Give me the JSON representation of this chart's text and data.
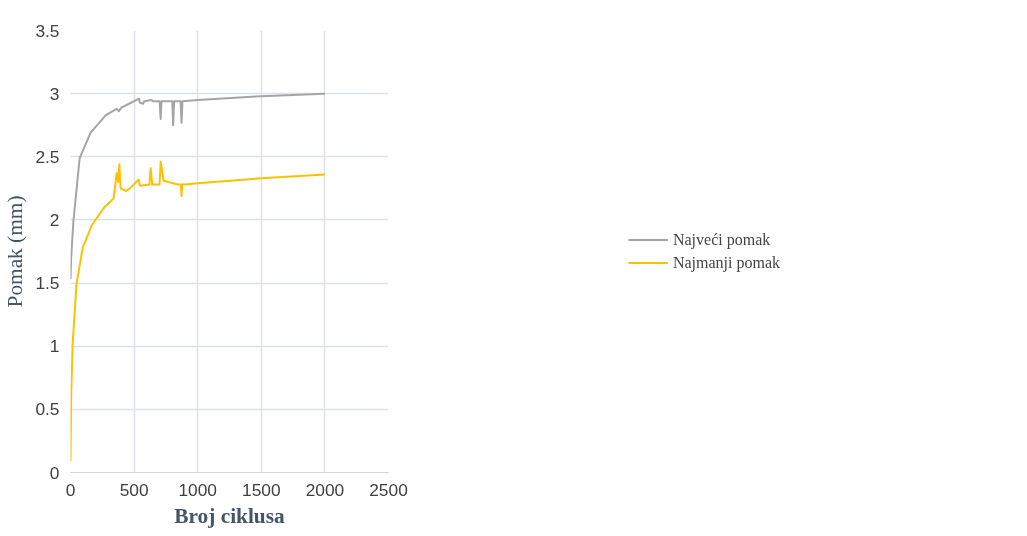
{
  "chart_data": {
    "type": "line",
    "xlabel": "Broj ciklusa",
    "ylabel": "Pomak (mm)",
    "xlim": [
      0,
      2500
    ],
    "xticks": [
      0,
      500,
      1000,
      1500,
      2000,
      2500
    ],
    "ylim": [
      0,
      3.5
    ],
    "yticks": [
      0,
      0.5,
      1,
      1.5,
      2,
      2.5,
      3,
      3.5
    ],
    "grid": true,
    "legend": "right",
    "marker": "none",
    "line_style": "solid",
    "series": [
      {
        "name": "Najveći pomak",
        "color": "#a5a5a5",
        "x": [
          0,
          5,
          23,
          72,
          157,
          278,
          363,
          381,
          400,
          460,
          539,
          545,
          570,
          580,
          637,
          650,
          700,
          709,
          715,
          800,
          807,
          815,
          865,
          873,
          880,
          1000,
          1500,
          2000
        ],
        "values": [
          1.53,
          1.7,
          1.99,
          2.49,
          2.69,
          2.83,
          2.88,
          2.86,
          2.89,
          2.92,
          2.96,
          2.93,
          2.92,
          2.94,
          2.95,
          2.94,
          2.94,
          2.8,
          2.94,
          2.94,
          2.75,
          2.94,
          2.94,
          2.77,
          2.94,
          2.95,
          2.98,
          3.0
        ]
      },
      {
        "name": "Najmanji pomak",
        "color": "#ffc000",
        "x": [
          0,
          5,
          17,
          47,
          96,
          169,
          266,
          339,
          363,
          375,
          384,
          394,
          436,
          467,
          536,
          546,
          620,
          630,
          642,
          700,
          709,
          733,
          843,
          868,
          873,
          878,
          898,
          1000,
          1500,
          2000
        ],
        "values": [
          0.09,
          0.6,
          1.02,
          1.49,
          1.78,
          1.96,
          2.1,
          2.17,
          2.37,
          2.3,
          2.44,
          2.25,
          2.23,
          2.25,
          2.32,
          2.27,
          2.28,
          2.41,
          2.28,
          2.28,
          2.46,
          2.31,
          2.28,
          2.28,
          2.19,
          2.28,
          2.28,
          2.29,
          2.33,
          2.36
        ]
      }
    ]
  }
}
